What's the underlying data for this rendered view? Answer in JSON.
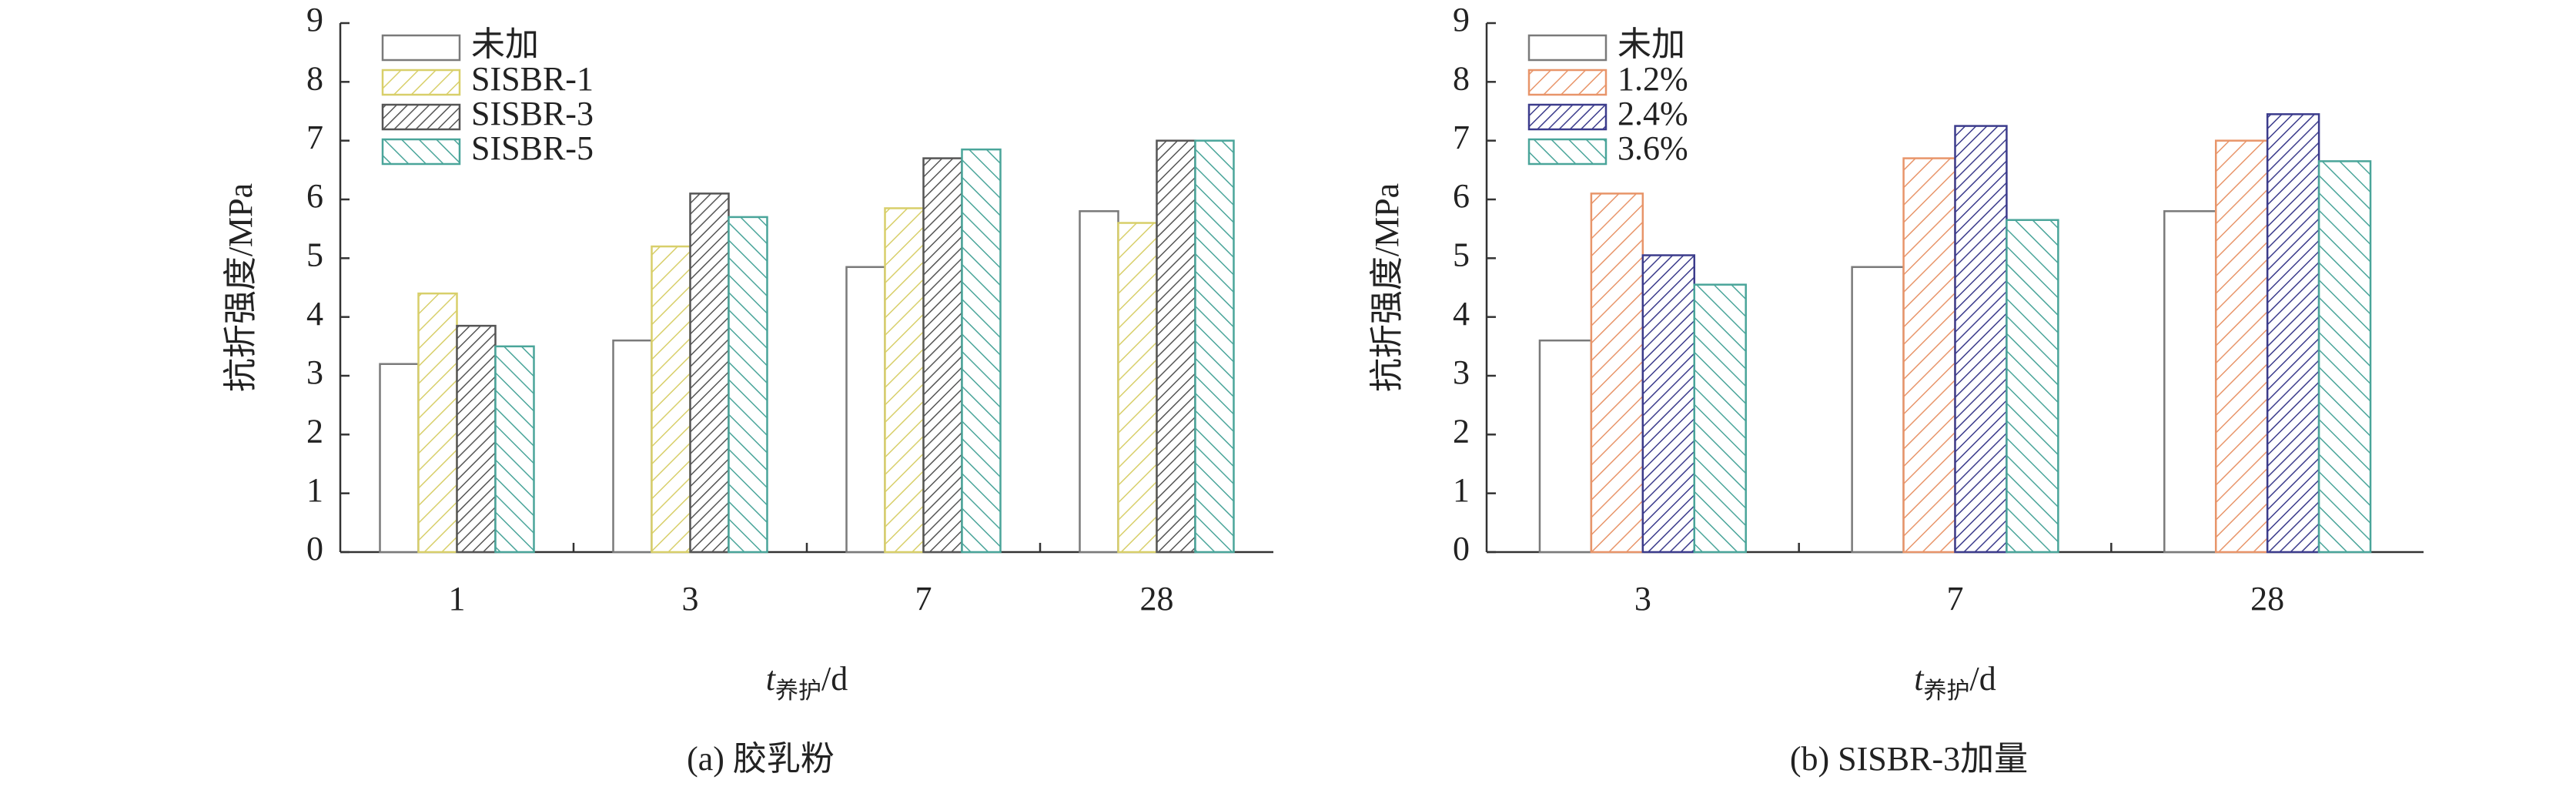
{
  "chart_data": [
    {
      "type": "bar",
      "caption": "(a) 胶乳粉",
      "y_label": "抗折强度/MPa",
      "x_label": {
        "symbol": "t",
        "subscript": "养护",
        "unit": "/d"
      },
      "categories": [
        "1",
        "3",
        "7",
        "28"
      ],
      "ylim": [
        0,
        9
      ],
      "yticks": [
        0,
        1,
        2,
        3,
        4,
        5,
        6,
        7,
        8,
        9
      ],
      "legend": "upper left",
      "series": [
        {
          "name": "未加",
          "color": "#7a7a7a",
          "hatch": "none",
          "values": [
            3.2,
            3.6,
            4.85,
            5.8
          ]
        },
        {
          "name": "SISBR-1",
          "color": "#d8cf6a",
          "hatch": "diagonal",
          "values": [
            4.4,
            5.2,
            5.85,
            5.6
          ]
        },
        {
          "name": "SISBR-3",
          "color": "#555555",
          "hatch": "dense-diagonal",
          "values": [
            3.85,
            6.1,
            6.7,
            7.0
          ]
        },
        {
          "name": "SISBR-5",
          "color": "#4aa59a",
          "hatch": "back-diagonal",
          "values": [
            3.5,
            5.7,
            6.85,
            7.0
          ]
        }
      ]
    },
    {
      "type": "bar",
      "caption": "(b) SISBR-3加量",
      "y_label": "抗折强度/MPa",
      "x_label": {
        "symbol": "t",
        "subscript": "养护",
        "unit": "/d"
      },
      "categories": [
        "3",
        "7",
        "28"
      ],
      "ylim": [
        0,
        9
      ],
      "yticks": [
        0,
        1,
        2,
        3,
        4,
        5,
        6,
        7,
        8,
        9
      ],
      "legend": "upper left",
      "series": [
        {
          "name": "未加",
          "color": "#7a7a7a",
          "hatch": "none",
          "values": [
            3.6,
            4.85,
            5.8
          ]
        },
        {
          "name": "1.2%",
          "color": "#e8956a",
          "hatch": "diagonal",
          "values": [
            6.1,
            6.7,
            7.0
          ]
        },
        {
          "name": "2.4%",
          "color": "#3c3c8c",
          "hatch": "dense-diagonal",
          "values": [
            5.05,
            7.25,
            7.45
          ]
        },
        {
          "name": "3.6%",
          "color": "#4aa59a",
          "hatch": "back-diagonal",
          "values": [
            4.55,
            5.65,
            6.65
          ]
        }
      ]
    }
  ]
}
